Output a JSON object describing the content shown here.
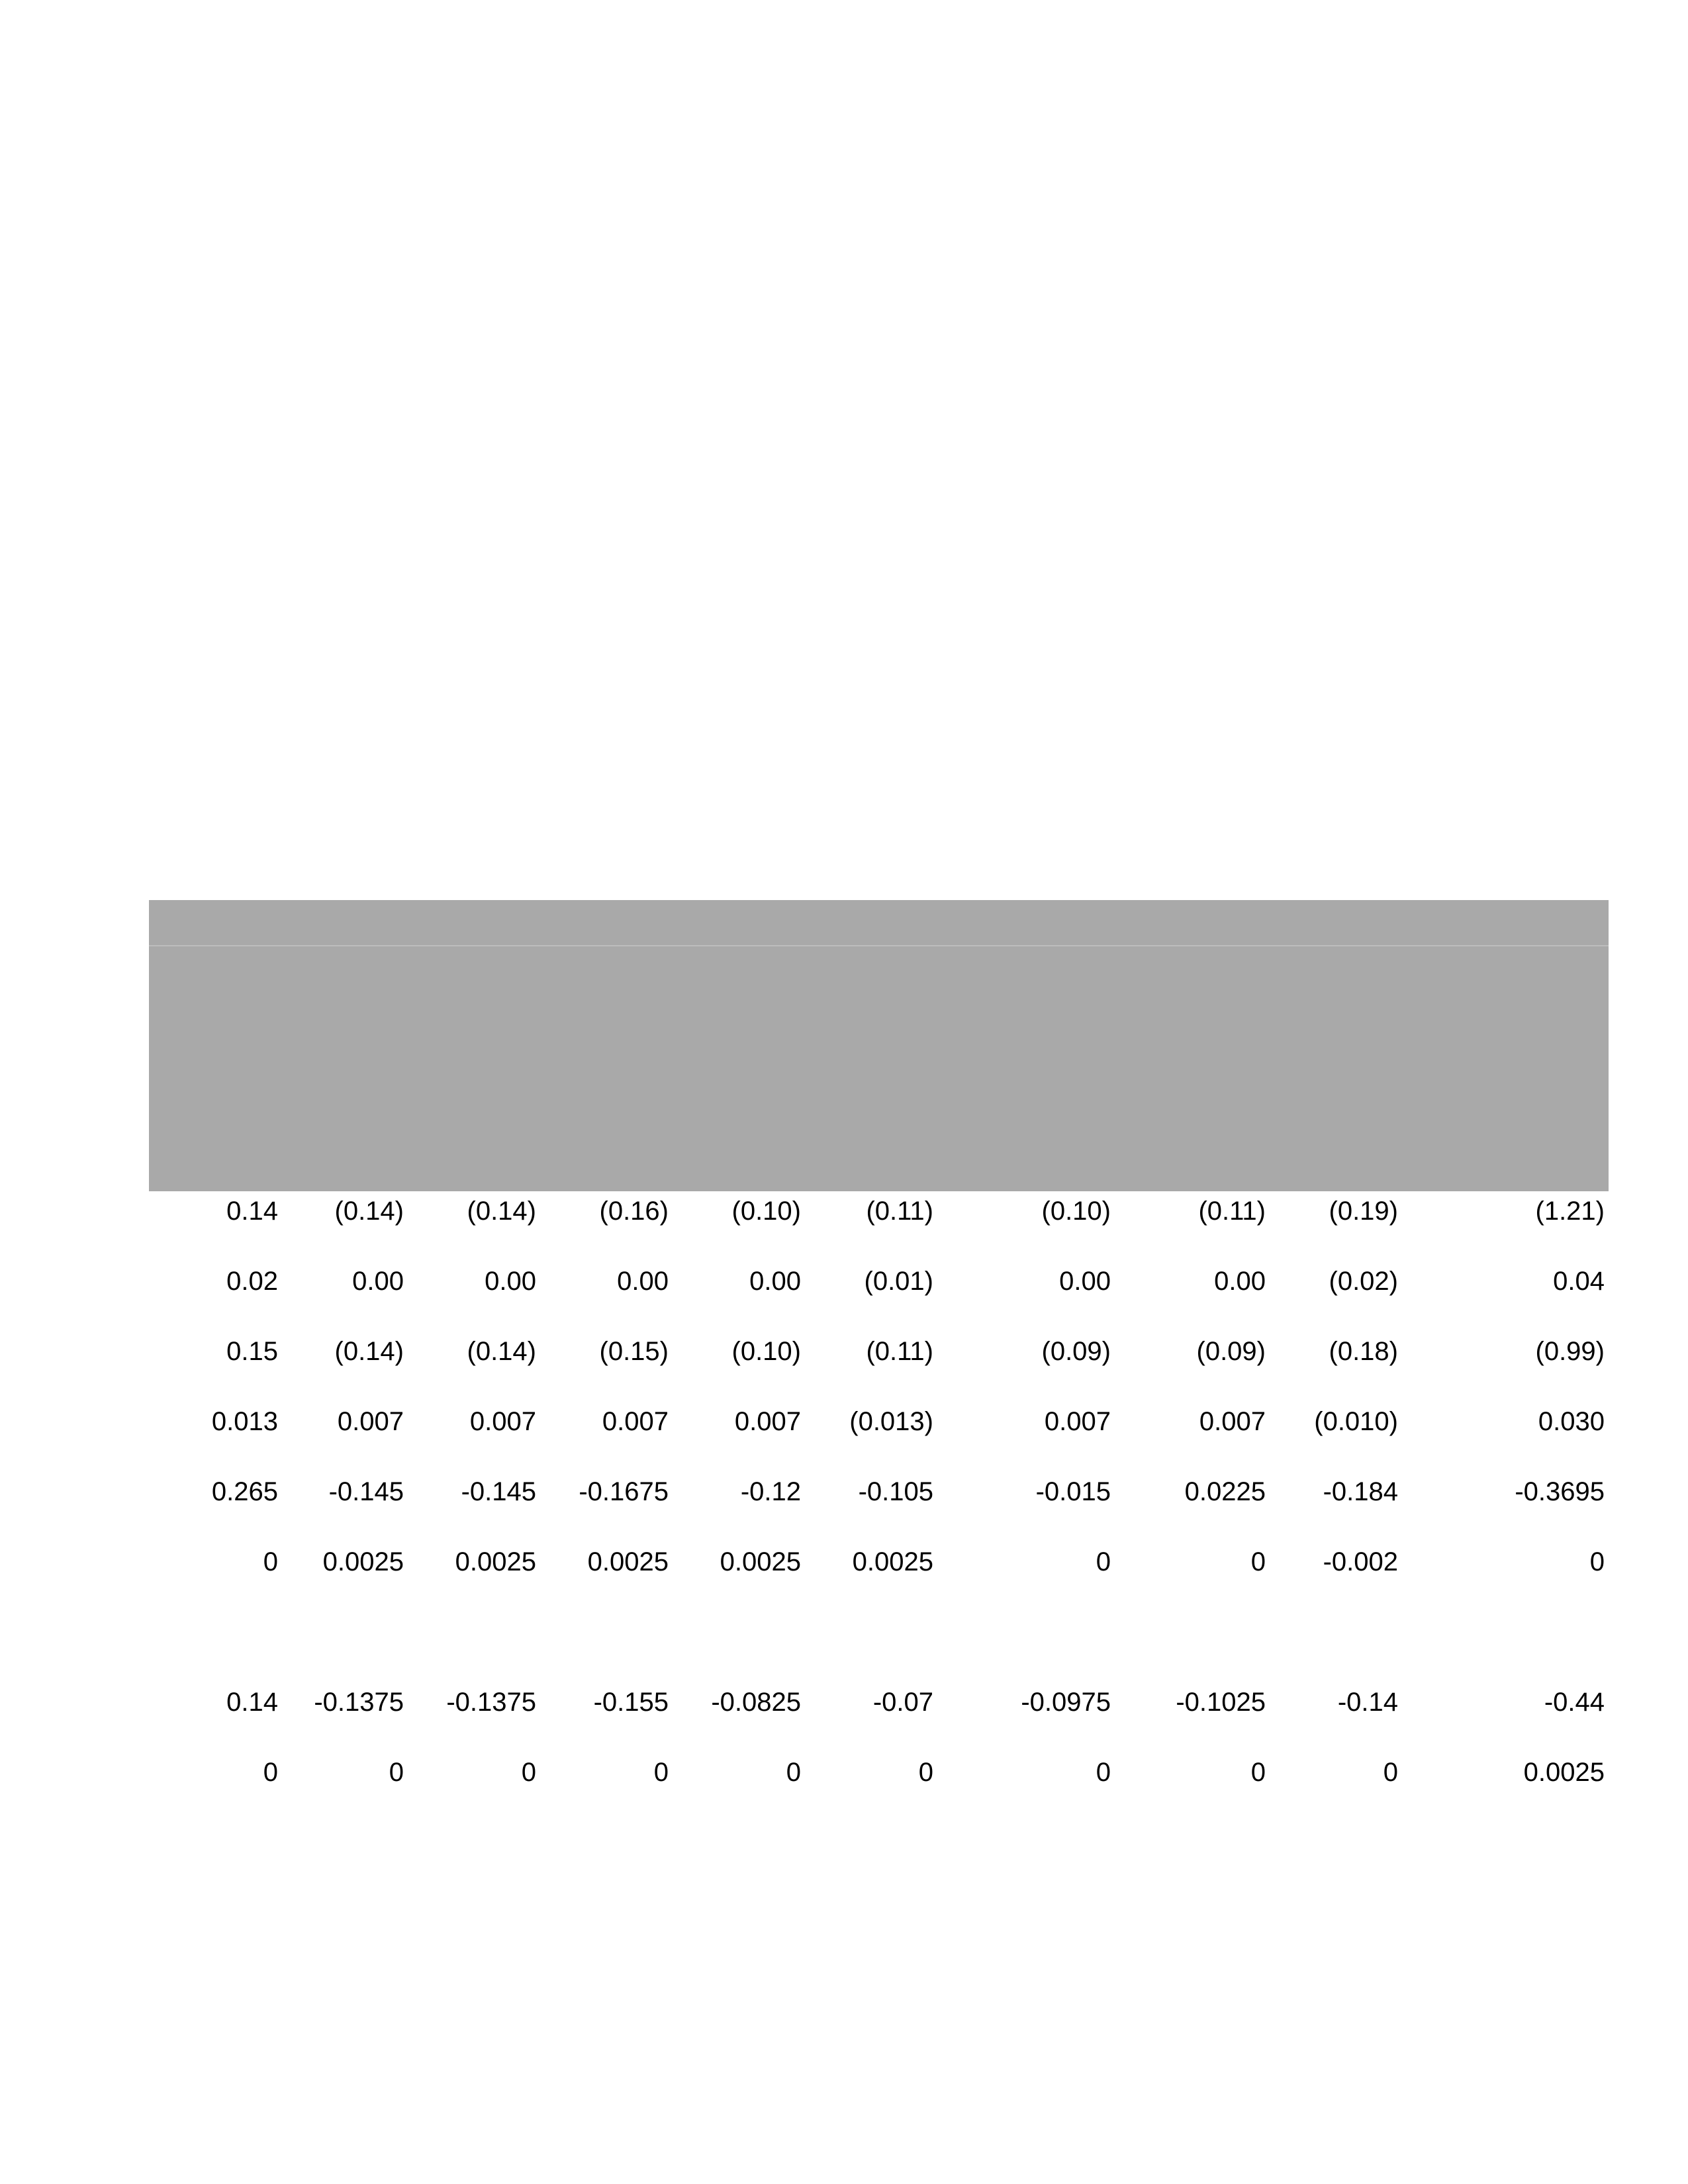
{
  "colors": {
    "header_band": "#a9a9a9",
    "header_divider": "#bdbdbd",
    "text": "#000000",
    "background": "#ffffff"
  },
  "table": {
    "rows": [
      [
        "0.14",
        "(0.14)",
        "(0.14)",
        "(0.16)",
        "(0.10)",
        "(0.11)",
        "(0.10)",
        "(0.11)",
        "(0.19)",
        "(1.21)"
      ],
      [
        "0.02",
        "0.00",
        "0.00",
        "0.00",
        "0.00",
        "(0.01)",
        "0.00",
        "0.00",
        "(0.02)",
        "0.04"
      ],
      [
        "0.15",
        "(0.14)",
        "(0.14)",
        "(0.15)",
        "(0.10)",
        "(0.11)",
        "(0.09)",
        "(0.09)",
        "(0.18)",
        "(0.99)"
      ],
      [
        "0.013",
        "0.007",
        "0.007",
        "0.007",
        "0.007",
        "(0.013)",
        "0.007",
        "0.007",
        "(0.010)",
        "0.030"
      ],
      [
        "0.265",
        "-0.145",
        "-0.145",
        "-0.1675",
        "-0.12",
        "-0.105",
        "-0.015",
        "0.0225",
        "-0.184",
        "-0.3695"
      ],
      [
        "0",
        "0.0025",
        "0.0025",
        "0.0025",
        "0.0025",
        "0.0025",
        "0",
        "0",
        "-0.002",
        "0"
      ],
      [
        "0.14",
        "-0.1375",
        "-0.1375",
        "-0.155",
        "-0.0825",
        "-0.07",
        "-0.0975",
        "-0.1025",
        "-0.14",
        "-0.44"
      ],
      [
        "0",
        "0",
        "0",
        "0",
        "0",
        "0",
        "0",
        "0",
        "0",
        "0.0025"
      ]
    ]
  }
}
